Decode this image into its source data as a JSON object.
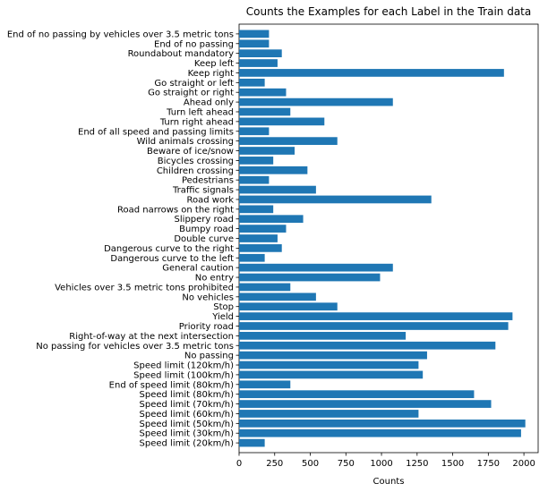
{
  "chart_data": {
    "type": "bar",
    "orientation": "horizontal",
    "title": "Counts the Examples for each Label in the Train data",
    "xlabel": "Counts",
    "ylabel": "",
    "xlim": [
      0,
      2100
    ],
    "xticks": [
      0,
      250,
      500,
      750,
      1000,
      1250,
      1500,
      1750,
      2000
    ],
    "grid": false,
    "bar_color": "#1f77b4",
    "categories": [
      "Speed limit (20km/h)",
      "Speed limit (30km/h)",
      "Speed limit (50km/h)",
      "Speed limit (60km/h)",
      "Speed limit (70km/h)",
      "Speed limit (80km/h)",
      "End of speed limit (80km/h)",
      "Speed limit (100km/h)",
      "Speed limit (120km/h)",
      "No passing",
      "No passing for vehicles over 3.5 metric tons",
      "Right-of-way at the next intersection",
      "Priority road",
      "Yield",
      "Stop",
      "No vehicles",
      "Vehicles over 3.5 metric tons prohibited",
      "No entry",
      "General caution",
      "Dangerous curve to the left",
      "Dangerous curve to the right",
      "Double curve",
      "Bumpy road",
      "Slippery road",
      "Road narrows on the right",
      "Road work",
      "Traffic signals",
      "Pedestrians",
      "Children crossing",
      "Bicycles crossing",
      "Beware of ice/snow",
      "Wild animals crossing",
      "End of all speed and passing limits",
      "Turn right ahead",
      "Turn left ahead",
      "Ahead only",
      "Go straight or right",
      "Go straight or left",
      "Keep right",
      "Keep left",
      "Roundabout mandatory",
      "End of no passing",
      "End of no passing by vehicles over 3.5 metric tons"
    ],
    "values": [
      180,
      1980,
      2010,
      1260,
      1770,
      1650,
      360,
      1290,
      1260,
      1320,
      1800,
      1170,
      1890,
      1920,
      690,
      540,
      360,
      990,
      1080,
      180,
      300,
      270,
      330,
      450,
      240,
      1350,
      540,
      210,
      480,
      240,
      390,
      690,
      210,
      599,
      360,
      1080,
      330,
      180,
      1860,
      270,
      300,
      210,
      210
    ]
  }
}
